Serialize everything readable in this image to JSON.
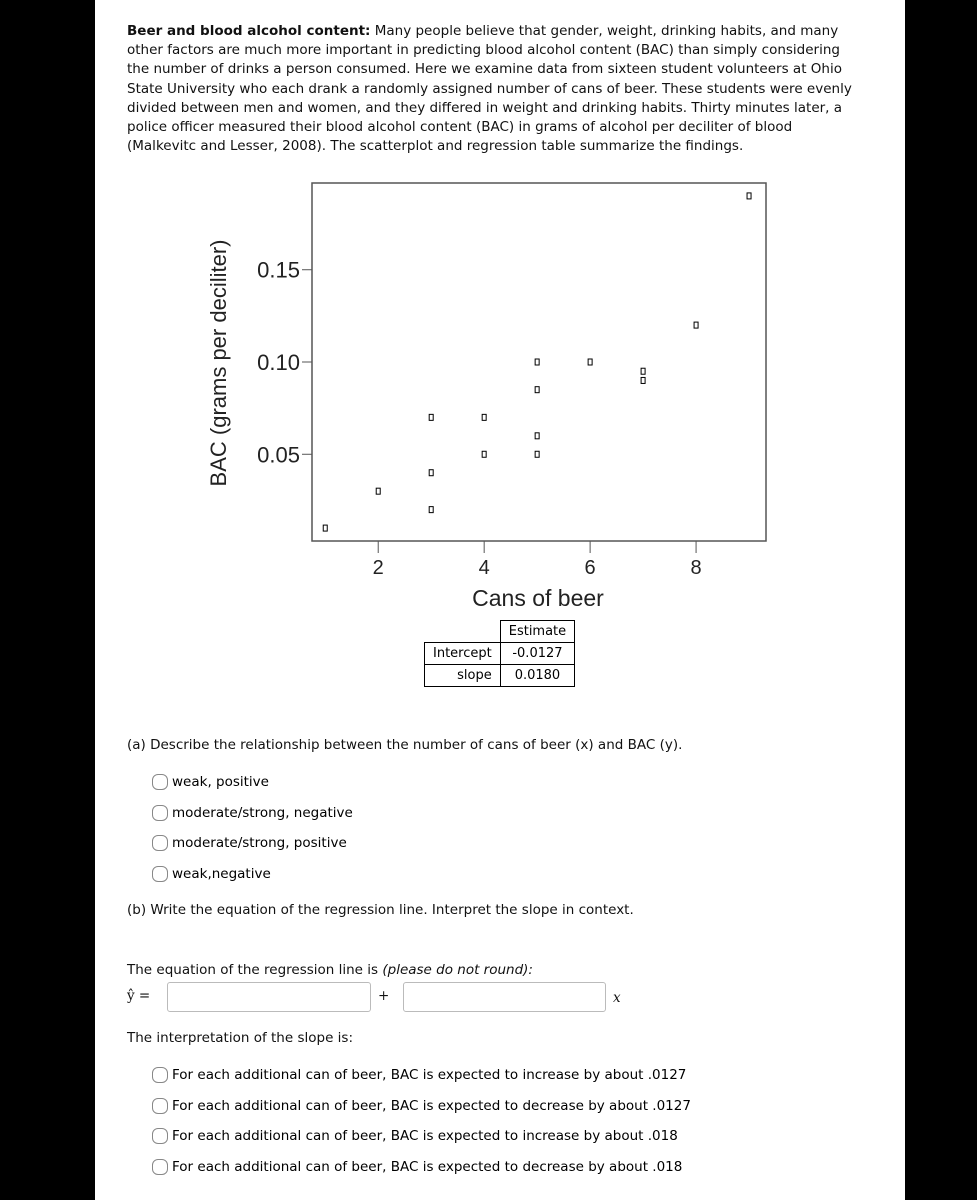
{
  "intro": {
    "title": "Beer and blood alcohol content:",
    "text": "Many people believe that gender, weight, drinking habits, and many other factors are much more important in predicting blood alcohol content (BAC) than simply considering the number of drinks a person consumed. Here we examine data from sixteen student volunteers at Ohio State University who each drank a randomly assigned number of cans of beer. These students were evenly divided between men and women, and they differed in weight and drinking habits. Thirty minutes later, a police officer measured their blood alcohol content (BAC) in grams of alcohol per deciliter of blood (Malkevitc and Lesser, 2008). The scatterplot and regression table summarize the findings."
  },
  "chart_data": {
    "type": "scatter",
    "x_label": "Cans of beer",
    "y_label": "BAC (grams per deciliter)",
    "x": [
      1,
      2,
      3,
      3,
      3,
      4,
      4,
      5,
      5,
      5,
      5,
      6,
      7,
      7,
      8,
      9
    ],
    "values": [
      0.01,
      0.03,
      0.07,
      0.04,
      0.02,
      0.07,
      0.05,
      0.1,
      0.085,
      0.06,
      0.05,
      0.1,
      0.095,
      0.09,
      0.12,
      0.19
    ],
    "color": "#000000",
    "xlim": [
      0.75,
      9.32
    ],
    "ylim": [
      0.003,
      0.197
    ],
    "xticks": [
      2,
      4,
      6,
      8
    ],
    "yticks": [
      0.05,
      {
        "value": 0.1,
        "label": "0.10"
      },
      0.15
    ]
  },
  "regression_table": {
    "header": "Estimate",
    "rows": [
      [
        "Intercept",
        "-0.0127"
      ],
      [
        "slope",
        "0.0180"
      ]
    ]
  },
  "part_a": {
    "question": "(a) Describe the relationship between the number of cans of beer (x) and BAC (y).",
    "options": [
      "weak, positive",
      "moderate/strong, negative",
      "moderate/strong, positive",
      "weak,negative"
    ]
  },
  "part_b": {
    "question": "(b) Write the equation of the regression line. Interpret the slope in context.",
    "equation_prompt": "The equation of the regression line is",
    "equation_note": "(please do not round):",
    "y_hat": "ŷ =",
    "plus": "+",
    "x_symbol": "x",
    "slope_prompt": "The interpretation of the slope is:",
    "options": [
      "For each additional can of beer, BAC is expected to increase by about .0127",
      "For each additional can of beer, BAC is expected to decrease by about .0127",
      "For each additional can of beer, BAC is expected to increase by about .018",
      "For each additional can of beer, BAC is expected to decrease by about .018"
    ]
  }
}
